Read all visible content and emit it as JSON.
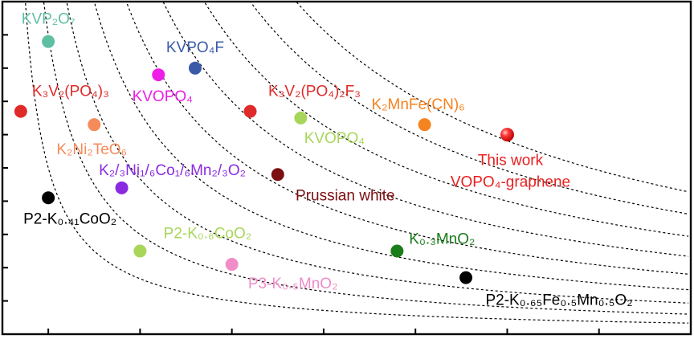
{
  "chart_data": {
    "type": "scatter",
    "title": "",
    "xlabel": "",
    "ylabel": "",
    "xlim": [
      0,
      15
    ],
    "ylim": [
      0,
      10
    ],
    "grid": false,
    "x_ticks": [
      1,
      3,
      5,
      7,
      9,
      11,
      13
    ],
    "y_ticks": [
      1,
      2,
      3,
      4,
      5,
      6,
      7,
      8,
      9
    ],
    "energy_density_contours": [
      5,
      9,
      14,
      20,
      27,
      35,
      44,
      54,
      64
    ],
    "points": [
      {
        "label": "KVP₂O₇",
        "x": 1.0,
        "y": 8.8,
        "color": "#5fbfa3"
      },
      {
        "label": "KVPO₄F",
        "x": 4.2,
        "y": 8.0,
        "color": "#3a5aa8"
      },
      {
        "label": "KVOPO₄",
        "x": 3.4,
        "y": 7.8,
        "color": "#ee1ee8"
      },
      {
        "label": "K₃V₂(PO₄)₃",
        "x": 0.4,
        "y": 6.7,
        "color": "#e02a2a"
      },
      {
        "label": "K₃V₂(PO₄)₂F₃",
        "x": 5.4,
        "y": 6.7,
        "color": "#e02a2a"
      },
      {
        "label": "KVOPO₄",
        "x": 6.5,
        "y": 6.5,
        "color": "#a8d65a"
      },
      {
        "label": "K₂MnFe(CN)₆",
        "x": 9.2,
        "y": 6.3,
        "color": "#f58320"
      },
      {
        "label": "K₂Ni₂TeO₆",
        "x": 2.0,
        "y": 6.3,
        "color": "#f58b5a"
      },
      {
        "label": "This work\nVOPO₄-graphene",
        "x": 11.0,
        "y": 6.0,
        "color": "#e82020"
      },
      {
        "label": "Prussian white",
        "x": 6.0,
        "y": 4.8,
        "color": "#7b0f12"
      },
      {
        "label": "K₂/₃Ni₁/₆Co₁/₆Mn₂/₃O₂",
        "x": 2.6,
        "y": 4.4,
        "color": "#8a2be2"
      },
      {
        "label": "P2-K₀.₄₁CoO₂",
        "x": 1.0,
        "y": 4.1,
        "color": "#000000"
      },
      {
        "label": "P2-K₀.₆CoO₂",
        "x": 3.0,
        "y": 2.5,
        "color": "#a8d65a"
      },
      {
        "label": "K₀.₃MnO₂",
        "x": 8.6,
        "y": 2.5,
        "color": "#1a7d1a"
      },
      {
        "label": "P3-K₀.₅MnO₂",
        "x": 5.0,
        "y": 2.1,
        "color": "#f08cc8"
      },
      {
        "label": "P2-K₀.₆₅Fe₀.₅Mn₀.₅O₂",
        "x": 10.1,
        "y": 1.7,
        "color": "#000000"
      }
    ]
  }
}
